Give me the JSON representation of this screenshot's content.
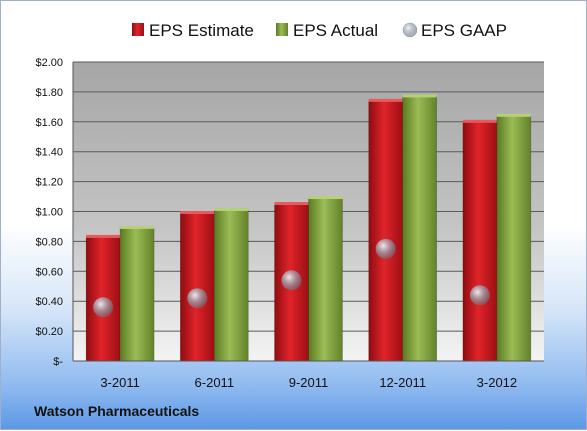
{
  "chart_data": {
    "type": "bar",
    "categories": [
      "3-2011",
      "6-2011",
      "9-2011",
      "12-2011",
      "3-2012"
    ],
    "series": [
      {
        "name": "EPS Estimate",
        "values": [
          0.83,
          0.99,
          1.05,
          1.74,
          1.6
        ],
        "color": "#c0161c",
        "kind": "bar"
      },
      {
        "name": "EPS Actual",
        "values": [
          0.89,
          1.01,
          1.09,
          1.77,
          1.64
        ],
        "color": "#7a9a3a",
        "kind": "bar"
      },
      {
        "name": "EPS GAAP",
        "values": [
          0.36,
          0.42,
          0.54,
          0.75,
          0.44
        ],
        "color": "#8f9aa6",
        "kind": "marker"
      }
    ],
    "ylim": [
      0,
      2.0
    ],
    "yticks": [
      0,
      0.2,
      0.4,
      0.6,
      0.8,
      1.0,
      1.2,
      1.4,
      1.6,
      1.8,
      2.0
    ],
    "ytick_labels": [
      "$-",
      "$0.20",
      "$0.40",
      "$0.60",
      "$0.80",
      "$1.00",
      "$1.20",
      "$1.40",
      "$1.60",
      "$1.80",
      "$2.00"
    ],
    "grid": true,
    "legend": "top"
  },
  "footer": {
    "company": "Watson Pharmaceuticals"
  }
}
